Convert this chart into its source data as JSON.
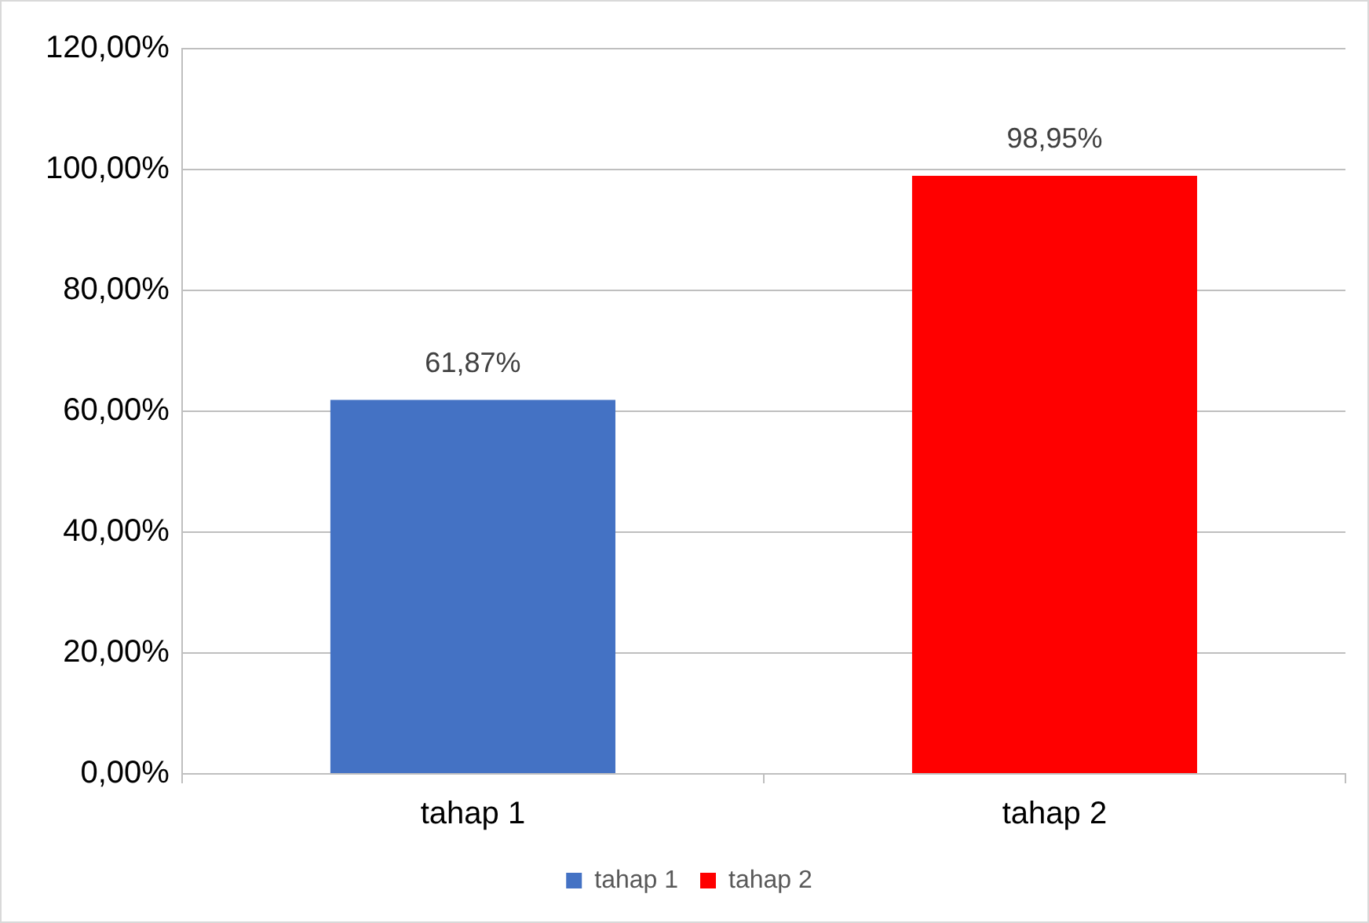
{
  "chart_data": {
    "type": "bar",
    "categories": [
      "tahap 1",
      "tahap 2"
    ],
    "series": [
      {
        "name": "tahap 1",
        "color": "#4472c4",
        "values": [
          61.87,
          null
        ],
        "value_labels": [
          "61,87%",
          null
        ]
      },
      {
        "name": "tahap 2",
        "color": "#ff0000",
        "values": [
          null,
          98.95
        ],
        "value_labels": [
          null,
          "98,95%"
        ]
      }
    ],
    "ylim": [
      0,
      120
    ],
    "yticks": [
      {
        "value": 0,
        "label": "0,00%"
      },
      {
        "value": 20,
        "label": "20,00%"
      },
      {
        "value": 40,
        "label": "40,00%"
      },
      {
        "value": 60,
        "label": "60,00%"
      },
      {
        "value": 80,
        "label": "80,00%"
      },
      {
        "value": 100,
        "label": "100,00%"
      },
      {
        "value": 120,
        "label": "120,00%"
      }
    ],
    "grid": "y",
    "legend": "bottom"
  }
}
